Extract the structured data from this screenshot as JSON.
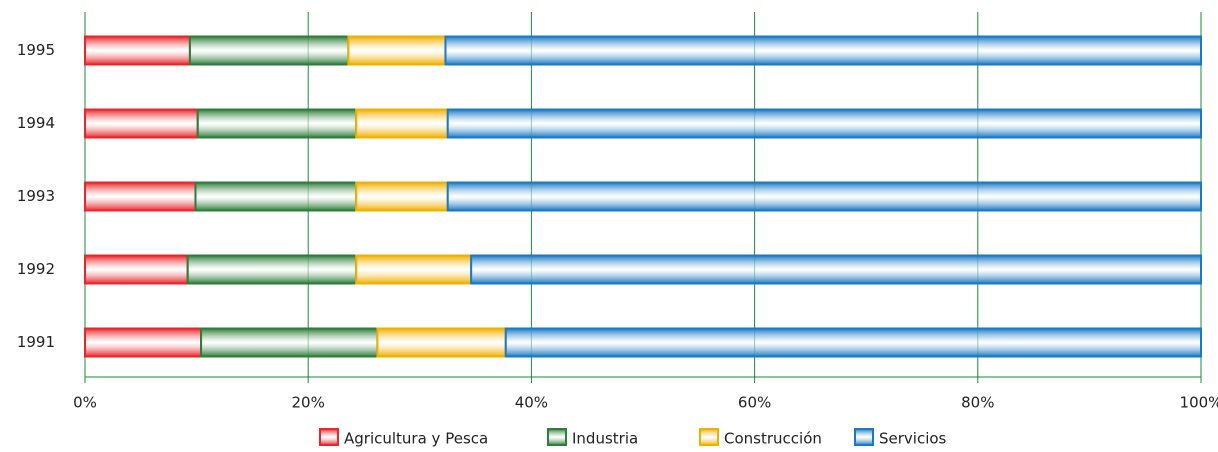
{
  "chart_data": {
    "type": "stacked-barh",
    "categories": [
      "1995",
      "1994",
      "1993",
      "1992",
      "1991"
    ],
    "series": [
      {
        "name": "Agricultura y Pesca",
        "color": "#e8262b",
        "values": [
          9.4,
          10.1,
          9.9,
          9.2,
          10.4
        ]
      },
      {
        "name": "Industria",
        "color": "#2e7d3a",
        "values": [
          14.2,
          14.2,
          14.4,
          15.1,
          15.8
        ]
      },
      {
        "name": "Construcción",
        "color": "#f0b000",
        "values": [
          8.7,
          8.2,
          8.2,
          10.3,
          11.5
        ]
      },
      {
        "name": "Servicios",
        "color": "#1b7ac4",
        "values": [
          67.7,
          67.5,
          67.5,
          65.4,
          62.3
        ]
      }
    ],
    "xlim": [
      0,
      100
    ],
    "xticks": [
      {
        "value": 0,
        "label": "0%"
      },
      {
        "value": 20,
        "label": "20%"
      },
      {
        "value": 40,
        "label": "40%"
      },
      {
        "value": 60,
        "label": "60%"
      },
      {
        "value": 80,
        "label": "80%"
      },
      {
        "value": 100,
        "label": "100%"
      }
    ],
    "grid": true,
    "legend": "bottom"
  }
}
